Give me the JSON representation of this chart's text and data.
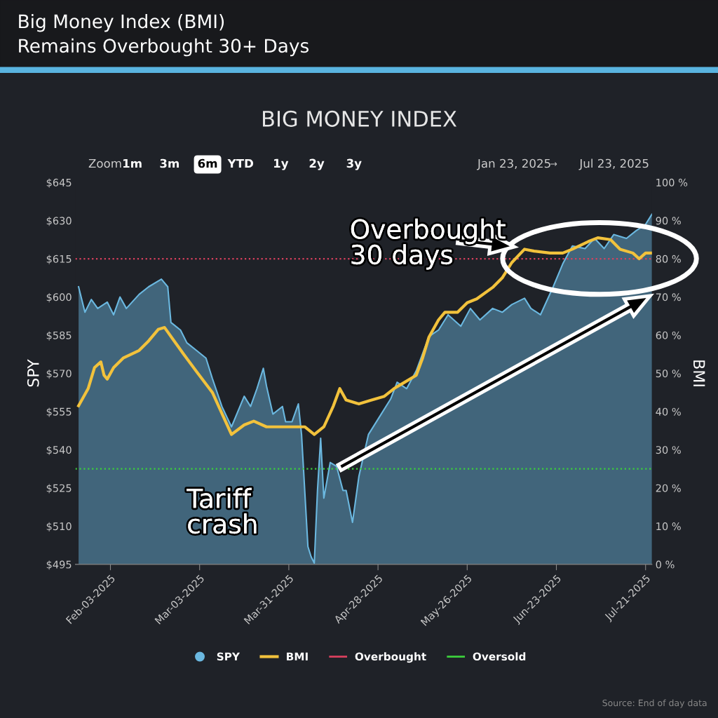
{
  "chart_data": {
    "type": "line",
    "title": "Big Money Index (BMI)",
    "subtitle": "Remains Overbought 30+ Days",
    "ylabel": "SPY",
    "y2label": "BMI",
    "annotations": [
      "BIG MONEY INDEX",
      "Overbought\n30 days",
      "Tariff\ncrash",
      "Zoom",
      "1m",
      "3m",
      "6m",
      "YTD",
      "1y",
      "2y",
      "3y",
      "Jan 23, 2025",
      "→",
      "Jul 23, 2025",
      "Source: End of day data"
    ],
    "xlim": [
      "2025-01-23",
      "2025-07-23"
    ],
    "xticks": [
      {
        "value": "2025-02-03",
        "label": "Feb-03-2025"
      },
      {
        "value": "2025-03-03",
        "label": "Mar-03-2025"
      },
      {
        "value": "2025-03-31",
        "label": "Mar-31-2025"
      },
      {
        "value": "2025-04-28",
        "label": "Apr-28-2025"
      },
      {
        "value": "2025-05-26",
        "label": "May-26-2025"
      },
      {
        "value": "2025-06-23",
        "label": "Jun-23-2025"
      },
      {
        "value": "2025-07-21",
        "label": "Jul-21-2025"
      }
    ],
    "ylim": [
      495,
      645
    ],
    "yticks": [
      {
        "value": 495,
        "label": "$495"
      },
      {
        "value": 510,
        "label": "$510"
      },
      {
        "value": 525,
        "label": "$525"
      },
      {
        "value": 540,
        "label": "$540"
      },
      {
        "value": 555,
        "label": "$555"
      },
      {
        "value": 570,
        "label": "$570"
      },
      {
        "value": 585,
        "label": "$585"
      },
      {
        "value": 600,
        "label": "$600"
      },
      {
        "value": 615,
        "label": "$615"
      },
      {
        "value": 630,
        "label": "$630"
      },
      {
        "value": 645,
        "label": "$645"
      }
    ],
    "y2lim": [
      0,
      100
    ],
    "y2ticks": [
      {
        "value": 0,
        "label": "0 %"
      },
      {
        "value": 10,
        "label": "10 %"
      },
      {
        "value": 20,
        "label": "20 %"
      },
      {
        "value": 30,
        "label": "30 %"
      },
      {
        "value": 40,
        "label": "40 %"
      },
      {
        "value": 50,
        "label": "50 %"
      },
      {
        "value": 60,
        "label": "60 %"
      },
      {
        "value": 70,
        "label": "70 %"
      },
      {
        "value": 80,
        "label": "80 %"
      },
      {
        "value": 90,
        "label": "90 %"
      },
      {
        "value": 100,
        "label": "100 %"
      }
    ],
    "series": [
      {
        "name": "SPY",
        "type": "area",
        "color": "#6bb8e0",
        "x": [
          "2025-01-24",
          "2025-01-26",
          "2025-01-28",
          "2025-01-30",
          "2025-02-02",
          "2025-02-04",
          "2025-02-06",
          "2025-02-08",
          "2025-02-12",
          "2025-02-15",
          "2025-02-19",
          "2025-02-21",
          "2025-02-22",
          "2025-02-25",
          "2025-02-27",
          "2025-03-02",
          "2025-03-05",
          "2025-03-07",
          "2025-03-10",
          "2025-03-13",
          "2025-03-17",
          "2025-03-19",
          "2025-03-21",
          "2025-03-23",
          "2025-03-24",
          "2025-03-26",
          "2025-03-29",
          "2025-03-30",
          "2025-04-01",
          "2025-04-03",
          "2025-04-04",
          "2025-04-06",
          "2025-04-07",
          "2025-04-08",
          "2025-04-09",
          "2025-04-10",
          "2025-04-11",
          "2025-04-13",
          "2025-04-15",
          "2025-04-17",
          "2025-04-18",
          "2025-04-20",
          "2025-04-22",
          "2025-04-25",
          "2025-04-29",
          "2025-05-02",
          "2025-05-04",
          "2025-05-07",
          "2025-05-10",
          "2025-05-14",
          "2025-05-17",
          "2025-05-20",
          "2025-05-24",
          "2025-05-27",
          "2025-05-30",
          "2025-06-03",
          "2025-06-06",
          "2025-06-09",
          "2025-06-13",
          "2025-06-15",
          "2025-06-18",
          "2025-06-22",
          "2025-06-25",
          "2025-06-28",
          "2025-07-02",
          "2025-07-05",
          "2025-07-08",
          "2025-07-11",
          "2025-07-15",
          "2025-07-18",
          "2025-07-21",
          "2025-07-23"
        ],
        "values": [
          604,
          594,
          599,
          595.5,
          598,
          593,
          600,
          595.5,
          601,
          604,
          607,
          604,
          590,
          587,
          582,
          579,
          576,
          568,
          557,
          549,
          561,
          557,
          564,
          572,
          565,
          554,
          557,
          551,
          551,
          558,
          546,
          502,
          498,
          495.5,
          524,
          544.5,
          521,
          535,
          533.5,
          524,
          524,
          511.5,
          529.5,
          546,
          554,
          560,
          566.5,
          564,
          571,
          584.5,
          587,
          593,
          588.5,
          595.5,
          591,
          595.5,
          594,
          597,
          599.5,
          595.5,
          593,
          604,
          613,
          620,
          619,
          623,
          619,
          624.5,
          623,
          626,
          628.5,
          632.5
        ]
      },
      {
        "name": "BMI",
        "axis": "y2",
        "color": "#f2c23c",
        "x": [
          "2025-01-24",
          "2025-01-27",
          "2025-01-29",
          "2025-01-31",
          "2025-02-01",
          "2025-02-02",
          "2025-02-04",
          "2025-02-07",
          "2025-02-12",
          "2025-02-15",
          "2025-02-18",
          "2025-02-20",
          "2025-02-23",
          "2025-02-26",
          "2025-03-02",
          "2025-03-07",
          "2025-03-10",
          "2025-03-13",
          "2025-03-17",
          "2025-03-20",
          "2025-03-24",
          "2025-03-29",
          "2025-04-02",
          "2025-04-05",
          "2025-04-08",
          "2025-04-11",
          "2025-04-14",
          "2025-04-16",
          "2025-04-18",
          "2025-04-22",
          "2025-04-26",
          "2025-04-30",
          "2025-05-03",
          "2025-05-06",
          "2025-05-10",
          "2025-05-12",
          "2025-05-14",
          "2025-05-17",
          "2025-05-19",
          "2025-05-23",
          "2025-05-26",
          "2025-05-29",
          "2025-06-03",
          "2025-06-06",
          "2025-06-09",
          "2025-06-13",
          "2025-06-16",
          "2025-06-21",
          "2025-06-25",
          "2025-06-28",
          "2025-07-03",
          "2025-07-06",
          "2025-07-10",
          "2025-07-13",
          "2025-07-17",
          "2025-07-19",
          "2025-07-21",
          "2025-07-23"
        ],
        "values": [
          41.5,
          46,
          51.5,
          53,
          49.5,
          48.5,
          51.5,
          54,
          56,
          58.5,
          61.5,
          62,
          58.5,
          55,
          50.5,
          45,
          39.5,
          34,
          36.5,
          37.5,
          36,
          36,
          36,
          36,
          34,
          36,
          41.5,
          46,
          43,
          42,
          43,
          44,
          46,
          47.5,
          49.5,
          54,
          59.5,
          64,
          66,
          66,
          68.5,
          69.5,
          72.5,
          75,
          79,
          82.5,
          82,
          81.5,
          81.5,
          82.5,
          84.5,
          85.5,
          85,
          82.5,
          81.5,
          80,
          81.5,
          81.5
        ]
      }
    ],
    "ref_lines": [
      {
        "axis": "y2",
        "value": 80,
        "label": "Overbought",
        "color": "#d9405e",
        "line_style": "dotted"
      },
      {
        "axis": "y2",
        "value": 25,
        "label": "Oversold",
        "color": "#3ccf3c",
        "line_style": "dotted"
      }
    ],
    "grid": false,
    "legend": "bottom"
  }
}
